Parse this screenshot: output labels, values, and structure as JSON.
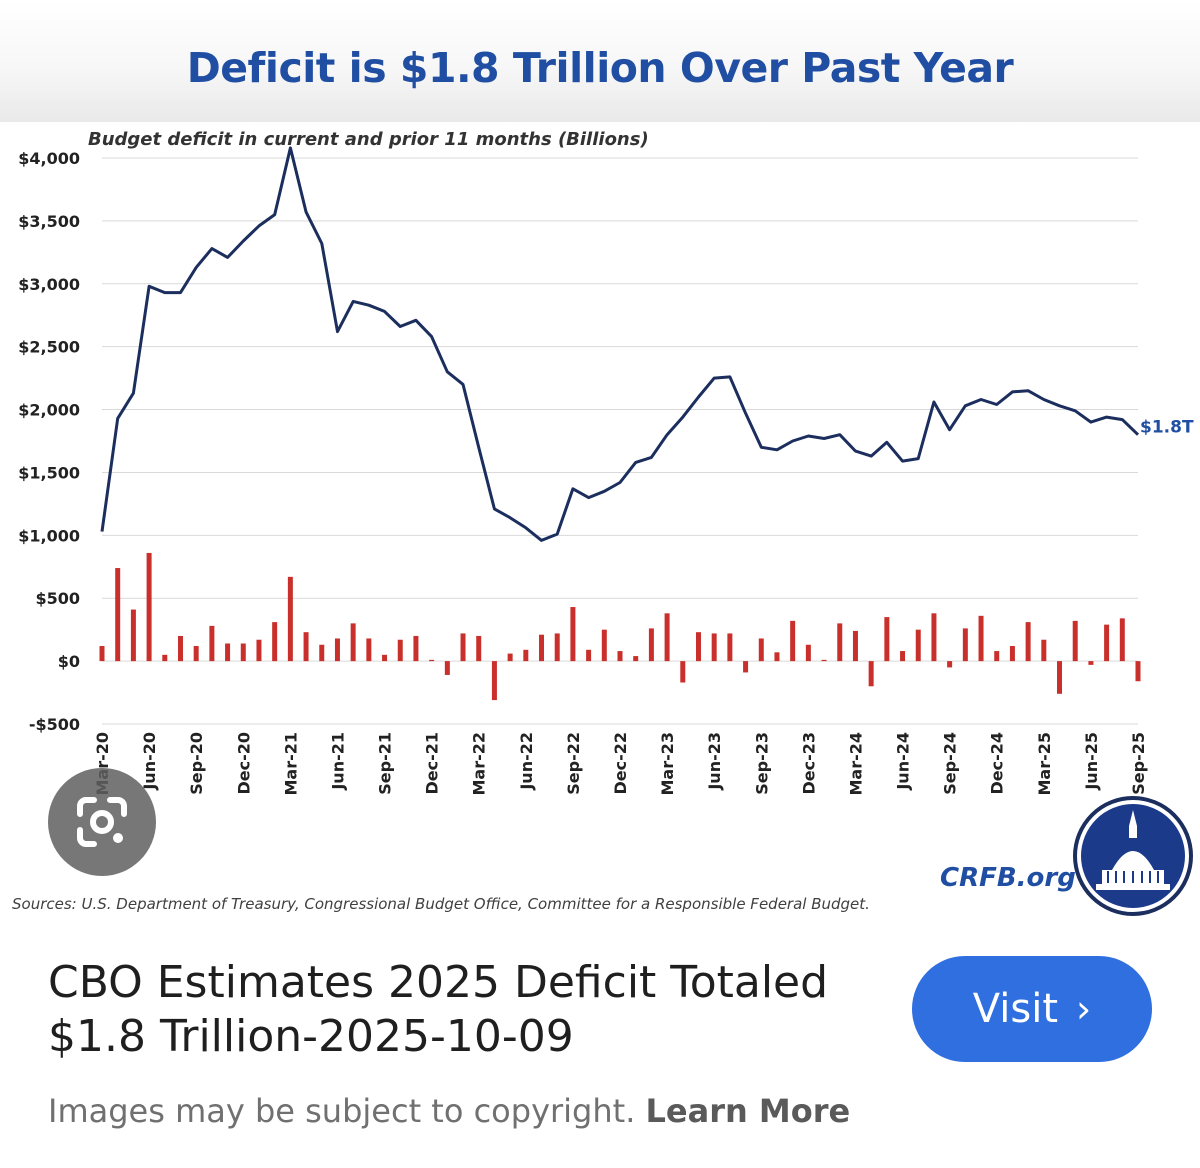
{
  "chart_data": {
    "type": "line+bar",
    "title": "Deficit is $1.8 Trillion Over Past Year",
    "subtitle": "Budget deficit in current and prior 11 months (Billions)",
    "ylim": [
      -500,
      4000
    ],
    "yticks": [
      -500,
      0,
      500,
      1000,
      1500,
      2000,
      2500,
      3000,
      3500,
      4000
    ],
    "ytick_labels": [
      "-$500",
      "$0",
      "$500",
      "$1,000",
      "$1,500",
      "$2,000",
      "$2,500",
      "$3,000",
      "$3,500",
      "$4,000"
    ],
    "xtick_labels": [
      "Mar-20",
      "Jun-20",
      "Sep-20",
      "Dec-20",
      "Mar-21",
      "Jun-21",
      "Sep-21",
      "Dec-21",
      "Mar-22",
      "Jun-22",
      "Sep-22",
      "Dec-22",
      "Mar-23",
      "Jun-23",
      "Sep-23",
      "Dec-23",
      "Mar-24",
      "Jun-24",
      "Sep-24",
      "Dec-24",
      "Mar-25",
      "Jun-25",
      "Sep-25"
    ],
    "grid": true,
    "end_label": "$1.8T",
    "line_color": "#1b2e5e",
    "bar_color": "#c9302c",
    "series": [
      {
        "type": "line",
        "values": [
          1030,
          1930,
          2130,
          2980,
          2930,
          2930,
          3130,
          3280,
          3210,
          3340,
          3460,
          3550,
          4080,
          3570,
          3320,
          2620,
          2860,
          2830,
          2780,
          2660,
          2710,
          2580,
          2300,
          2200,
          1700,
          1210,
          1140,
          1060,
          960,
          1010,
          1370,
          1300,
          1350,
          1420,
          1580,
          1620,
          1800,
          1940,
          2100,
          2250,
          2260,
          1970,
          1700,
          1680,
          1750,
          1790,
          1770,
          1800,
          1670,
          1630,
          1740,
          1590,
          1610,
          2060,
          1840,
          2030,
          2080,
          2040,
          2140,
          2150,
          2080,
          2030,
          1990,
          1900,
          1940,
          1920,
          1800
        ]
      },
      {
        "type": "bar",
        "values": [
          120,
          740,
          410,
          860,
          50,
          200,
          120,
          280,
          140,
          140,
          170,
          310,
          670,
          230,
          130,
          180,
          300,
          180,
          50,
          170,
          200,
          10,
          -110,
          220,
          200,
          -310,
          60,
          90,
          210,
          220,
          430,
          90,
          250,
          80,
          40,
          260,
          380,
          -170,
          230,
          220,
          220,
          -90,
          180,
          70,
          320,
          130,
          10,
          300,
          240,
          -200,
          350,
          80,
          250,
          380,
          -50,
          260,
          360,
          80,
          120,
          310,
          170,
          -260,
          320,
          -30,
          290,
          340,
          -160
        ]
      }
    ]
  },
  "chart_footer": {
    "sources": "Sources: U.S. Department of Treasury, Congressional Budget Office, Committee for a Responsible Federal Budget.",
    "brand": "CRFB.org"
  },
  "result": {
    "title_line1": "CBO Estimates 2025 Deficit Totaled",
    "title_line2": "$1.8 Trillion-2025-10-09",
    "visit_label": "Visit",
    "visit_icon": "chevron-right-icon",
    "copyright_text": "Images may be subject to copyright.",
    "learn_more": "Learn More"
  },
  "colors": {
    "title_blue": "#1f4ea3",
    "button_blue": "#2f6fe0",
    "lens_gray": "#5f5f5f"
  }
}
